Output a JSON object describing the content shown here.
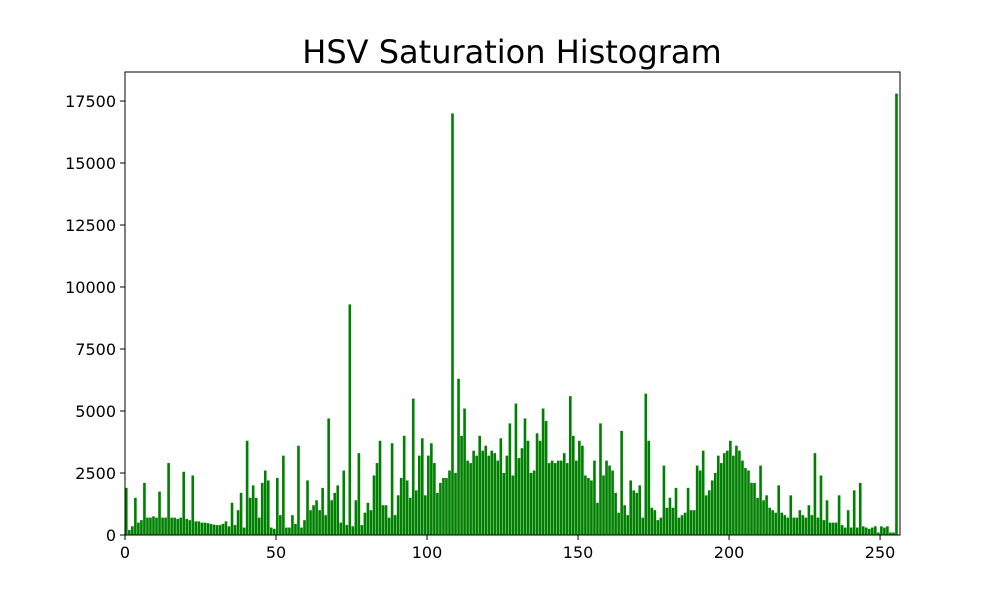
{
  "chart_data": {
    "type": "histogram",
    "title": "HSV Saturation Histogram",
    "color": "#008000",
    "bins": [
      0,
      1,
      2,
      3,
      4,
      5,
      6,
      7,
      8,
      9,
      10,
      11,
      12,
      13,
      14,
      15,
      16,
      17,
      18,
      19,
      20,
      21,
      22,
      23,
      24,
      25,
      26,
      27,
      28,
      29,
      30,
      31,
      32,
      33,
      34,
      35,
      36,
      37,
      38,
      39,
      40,
      41,
      42,
      43,
      44,
      45,
      46,
      47,
      48,
      49,
      50,
      51,
      52,
      53,
      54,
      55,
      56,
      57,
      58,
      59,
      60,
      61,
      62,
      63,
      64,
      65,
      66,
      67,
      68,
      69,
      70,
      71,
      72,
      73,
      74,
      75,
      76,
      77,
      78,
      79,
      80,
      81,
      82,
      83,
      84,
      85,
      86,
      87,
      88,
      89,
      90,
      91,
      92,
      93,
      94,
      95,
      96,
      97,
      98,
      99,
      100,
      101,
      102,
      103,
      104,
      105,
      106,
      107,
      108,
      109,
      110,
      111,
      112,
      113,
      114,
      115,
      116,
      117,
      118,
      119,
      120,
      121,
      122,
      123,
      124,
      125,
      126,
      127,
      128,
      129,
      130,
      131,
      132,
      133,
      134,
      135,
      136,
      137,
      138,
      139,
      140,
      141,
      142,
      143,
      144,
      145,
      146,
      147,
      148,
      149,
      150,
      151,
      152,
      153,
      154,
      155,
      156,
      157,
      158,
      159,
      160,
      161,
      162,
      163,
      164,
      165,
      166,
      167,
      168,
      169,
      170,
      171,
      172,
      173,
      174,
      175,
      176,
      177,
      178,
      179,
      180,
      181,
      182,
      183,
      184,
      185,
      186,
      187,
      188,
      189,
      190,
      191,
      192,
      193,
      194,
      195,
      196,
      197,
      198,
      199,
      200,
      201,
      202,
      203,
      204,
      205,
      206,
      207,
      208,
      209,
      210,
      211,
      212,
      213,
      214,
      215,
      216,
      217,
      218,
      219,
      220,
      221,
      222,
      223,
      224,
      225,
      226,
      227,
      228,
      229,
      230,
      231,
      232,
      233,
      234,
      235,
      236,
      237,
      238,
      239,
      240,
      241,
      242,
      243,
      244,
      245,
      246,
      247,
      248,
      249,
      250,
      251,
      252,
      253,
      254,
      255,
      256
    ],
    "counts": [
      1900,
      200,
      350,
      1500,
      500,
      600,
      2100,
      700,
      700,
      750,
      700,
      1750,
      700,
      700,
      2900,
      700,
      700,
      650,
      700,
      2550,
      650,
      600,
      2400,
      550,
      550,
      500,
      500,
      480,
      450,
      420,
      400,
      400,
      450,
      550,
      350,
      1300,
      400,
      1000,
      1700,
      300,
      3800,
      1500,
      2000,
      1500,
      700,
      2100,
      2600,
      2200,
      300,
      250,
      2300,
      800,
      3200,
      300,
      300,
      800,
      450,
      3600,
      300,
      600,
      2200,
      1000,
      1200,
      1400,
      1000,
      1900,
      800,
      4700,
      1400,
      1700,
      2000,
      500,
      2600,
      400,
      9300,
      350,
      1400,
      3300,
      400,
      900,
      1300,
      1000,
      2400,
      2900,
      3800,
      1200,
      1200,
      700,
      3700,
      800,
      1600,
      2300,
      4000,
      2200,
      1500,
      5500,
      1800,
      3200,
      3900,
      1600,
      3200,
      3700,
      2900,
      1700,
      2100,
      2300,
      2300,
      2600,
      17000,
      2500,
      6300,
      4000,
      5100,
      3000,
      2900,
      3400,
      3200,
      4000,
      3400,
      3600,
      3200,
      3400,
      3300,
      3000,
      3900,
      2500,
      3200,
      4500,
      2400,
      5300,
      3100,
      3500,
      4700,
      3800,
      2500,
      2600,
      4100,
      3800,
      5100,
      4600,
      2900,
      3000,
      2900,
      3000,
      3000,
      3300,
      2900,
      5600,
      4000,
      3000,
      3800,
      3600,
      2400,
      2300,
      2200,
      3000,
      1300,
      4500,
      2400,
      3000,
      2800,
      2600,
      1700,
      900,
      4200,
      1200,
      800,
      2200,
      1800,
      1700,
      2000,
      700,
      5700,
      3800,
      1100,
      1000,
      600,
      700,
      2800,
      1100,
      1500,
      1100,
      1900,
      700,
      800,
      900,
      1900,
      1000,
      1000,
      2800,
      2600,
      3400,
      1600,
      1800,
      2200,
      2500,
      3200,
      2900,
      3300,
      3400,
      3800,
      3200,
      3600,
      3400,
      3000,
      2700,
      2600,
      2100,
      2100,
      1500,
      2800,
      1400,
      1600,
      1100,
      1000,
      900,
      2000,
      900,
      800,
      700,
      1600,
      700,
      700,
      1000,
      800,
      700,
      1200,
      800,
      3300,
      700,
      2400,
      600,
      1400,
      500,
      500,
      500,
      1600,
      400,
      300,
      1000,
      300,
      1800,
      300,
      2100,
      350,
      300,
      250,
      300,
      350,
      100,
      350,
      300,
      350,
      100,
      100,
      17800
    ],
    "xlim": [
      0,
      256.6
    ],
    "ylim": [
      0,
      18670
    ],
    "xticks": [
      0,
      50,
      100,
      150,
      200,
      250
    ],
    "yticks": [
      0,
      2500,
      5000,
      7500,
      10000,
      12500,
      15000,
      17500
    ]
  }
}
